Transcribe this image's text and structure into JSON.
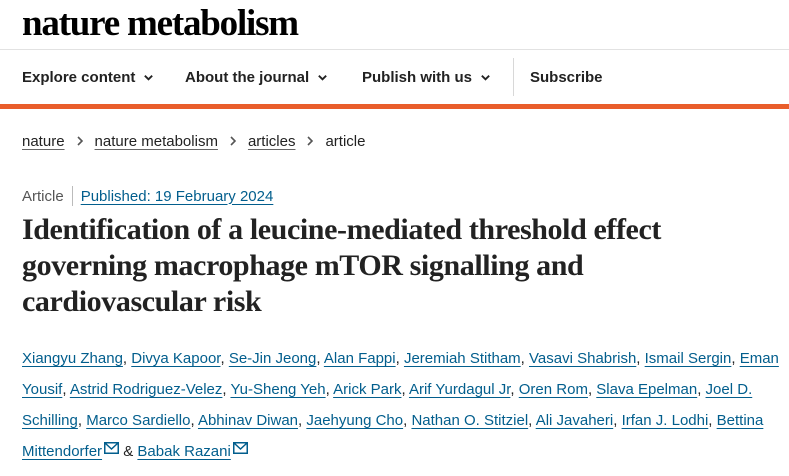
{
  "brand": {
    "name": "nature metabolism"
  },
  "nav": {
    "items": [
      {
        "label": "Explore content"
      },
      {
        "label": "About the journal"
      },
      {
        "label": "Publish with us"
      }
    ],
    "subscribe": "Subscribe"
  },
  "breadcrumb": [
    "nature",
    "nature metabolism",
    "articles",
    "article"
  ],
  "article": {
    "type": "Article",
    "published": "Published: 19 February 2024",
    "title": "Identification of a leucine-mediated threshold effect governing macrophage mTOR signalling and cardiovascular risk",
    "authors": [
      "Xiangyu Zhang",
      "Divya Kapoor",
      "Se-Jin Jeong",
      "Alan Fappi",
      "Jeremiah Stitham",
      "Vasavi Shabrish",
      "Ismail Sergin",
      "Eman Yousif",
      "Astrid Rodriguez-Velez",
      "Yu-Sheng Yeh",
      "Arick Park",
      "Arif Yurdagul Jr",
      "Oren Rom",
      "Slava Epelman",
      "Joel D. Schilling",
      "Marco Sardiello",
      "Abhinav Diwan",
      "Jaehyung Cho",
      "Nathan O. Stitziel",
      "Ali Javaheri",
      "Irfan J. Lodhi",
      "Bettina Mittendorfer",
      "Babak Razani"
    ],
    "ampersand": "&"
  },
  "colors": {
    "accent": "#e95d2b",
    "link": "#025e8d"
  }
}
